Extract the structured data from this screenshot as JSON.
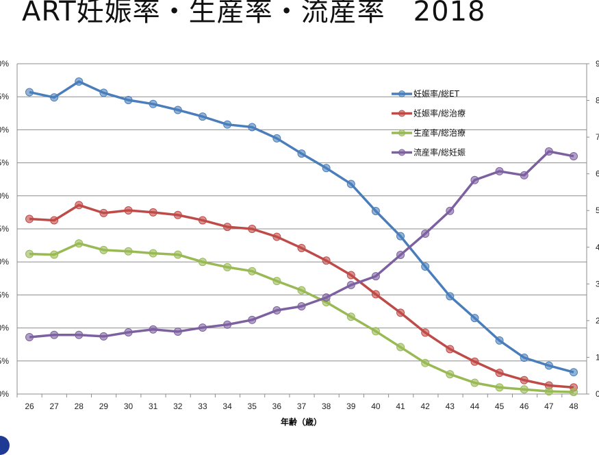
{
  "title": "ART妊娠率・生産率・流産率　2018",
  "chart_data": {
    "type": "line",
    "xlabel": "年齢（歳）",
    "x": [
      26,
      27,
      28,
      29,
      30,
      31,
      32,
      33,
      34,
      35,
      36,
      37,
      38,
      39,
      40,
      41,
      42,
      43,
      44,
      45,
      46,
      47,
      48
    ],
    "y_left": {
      "range": [
        0,
        50
      ],
      "step": 5,
      "unit": "%"
    },
    "y_right": {
      "range": [
        0,
        90
      ],
      "step": 10,
      "unit": "%"
    },
    "grid": true,
    "legend": "top-right",
    "series": [
      {
        "name": "妊娠率/総ET",
        "color": "#4a7ebb",
        "axis": "left",
        "values": [
          45.7,
          44.9,
          47.3,
          45.6,
          44.5,
          43.9,
          43.0,
          42.0,
          40.8,
          40.4,
          38.7,
          36.4,
          34.2,
          31.8,
          27.7,
          23.9,
          19.3,
          14.8,
          11.5,
          8.1,
          5.5,
          4.3,
          3.3
        ]
      },
      {
        "name": "妊娠率/総治療",
        "color": "#be4b48",
        "axis": "left",
        "values": [
          26.5,
          26.3,
          28.6,
          27.4,
          27.8,
          27.5,
          27.1,
          26.3,
          25.3,
          25.0,
          23.8,
          22.1,
          20.2,
          18.0,
          15.1,
          12.3,
          9.3,
          6.8,
          4.9,
          3.2,
          2.1,
          1.3,
          1.0
        ]
      },
      {
        "name": "生産率/総治療",
        "color": "#98b954",
        "axis": "left",
        "values": [
          21.2,
          21.1,
          22.8,
          21.8,
          21.6,
          21.3,
          21.1,
          20.0,
          19.2,
          18.6,
          17.1,
          15.7,
          13.9,
          11.7,
          9.5,
          7.1,
          4.7,
          3.0,
          1.7,
          1.0,
          0.7,
          0.4,
          0.3
        ]
      },
      {
        "name": "流産率/総妊娠",
        "color": "#7d60a0",
        "axis": "right",
        "values": [
          15.5,
          16.1,
          16.1,
          15.7,
          16.8,
          17.6,
          17.0,
          18.1,
          18.9,
          20.2,
          22.8,
          23.9,
          26.3,
          29.7,
          32.1,
          37.9,
          43.7,
          49.9,
          58.3,
          60.7,
          59.6,
          66.1,
          64.8
        ]
      }
    ]
  }
}
